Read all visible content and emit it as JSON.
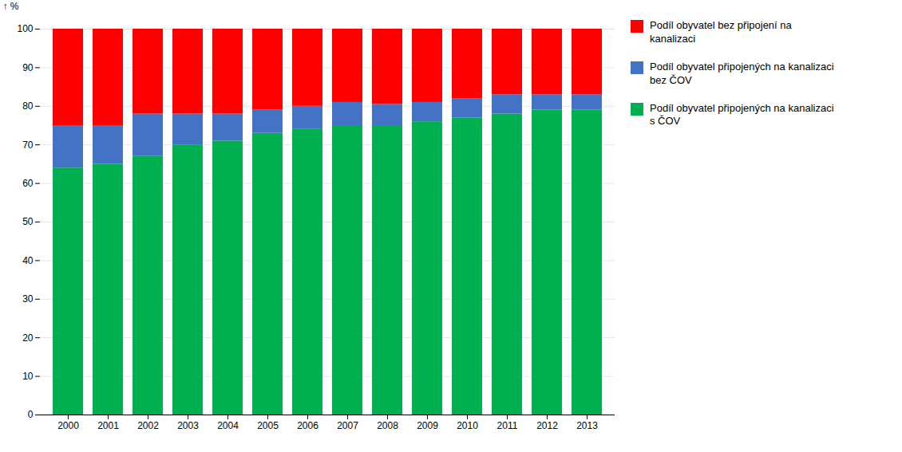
{
  "chart_data": {
    "type": "bar",
    "stacked": true,
    "ylabel": "%",
    "categories": [
      "2000",
      "2001",
      "2002",
      "2003",
      "2004",
      "2005",
      "2006",
      "2007",
      "2008",
      "2009",
      "2010",
      "2011",
      "2012",
      "2013"
    ],
    "series": [
      {
        "name": "Podíl obyvatel připojených na kanalizaci\ns ČOV",
        "color": "#00B050",
        "values": [
          64,
          65,
          67,
          70,
          71,
          73,
          74,
          75,
          75,
          76,
          77,
          78,
          79,
          79
        ]
      },
      {
        "name": "Podíl obyvatel připojených na kanalizaci\nbez ČOV",
        "color": "#4472C4",
        "values": [
          11,
          10,
          11,
          8,
          7,
          6,
          6,
          6,
          5.5,
          5,
          5,
          5,
          4,
          4
        ]
      },
      {
        "name": "Podíl obyvatel bez připojení na\nkanalizaci",
        "color": "#FF0000",
        "values": [
          25,
          25,
          22,
          22,
          22,
          21,
          20,
          19,
          19.5,
          19,
          18,
          17,
          17,
          17
        ]
      }
    ],
    "ylim": [
      0,
      100
    ],
    "yticks": [
      0,
      10,
      20,
      30,
      40,
      50,
      60,
      70,
      80,
      90,
      100
    ],
    "grid": true,
    "legend": "right"
  }
}
